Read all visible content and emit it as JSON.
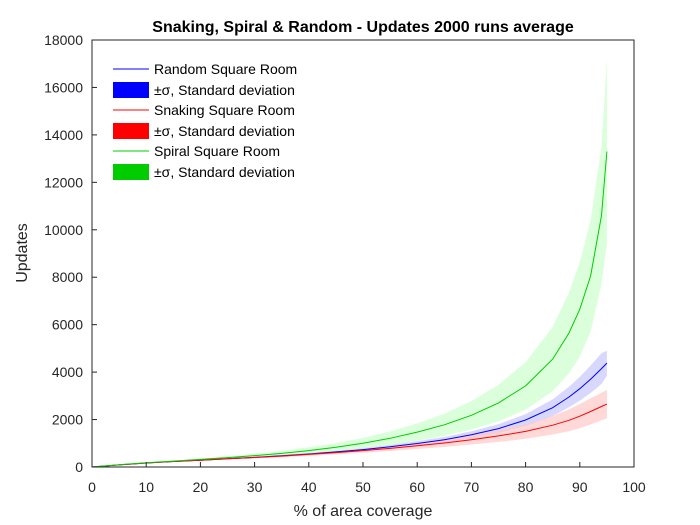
{
  "chart_data": {
    "type": "area",
    "title": "Snaking, Spiral & Random - Updates 2000 runs average",
    "xlabel": "% of area coverage",
    "ylabel": "Updates",
    "xlim": [
      0,
      100
    ],
    "ylim": [
      0,
      18000
    ],
    "xticks": [
      0,
      10,
      20,
      30,
      40,
      50,
      60,
      70,
      80,
      90,
      100
    ],
    "yticks": [
      0,
      2000,
      4000,
      6000,
      8000,
      10000,
      12000,
      14000,
      16000,
      18000
    ],
    "grid": false,
    "legend_position": "top-left",
    "x": [
      0,
      5,
      10,
      15,
      20,
      25,
      30,
      35,
      40,
      45,
      50,
      55,
      60,
      65,
      70,
      75,
      80,
      85,
      88,
      90,
      92,
      94,
      95
    ],
    "series": [
      {
        "name": "Random Square Room",
        "band_label": "±σ, Standard deviation",
        "color": "#0000ff",
        "band_color": "#c8c8ff",
        "mean": [
          0,
          90,
          170,
          230,
          285,
          345,
          405,
          475,
          550,
          635,
          735,
          850,
          990,
          1150,
          1360,
          1620,
          1980,
          2500,
          2950,
          3300,
          3700,
          4150,
          4380
        ],
        "upper": [
          0,
          95,
          180,
          245,
          305,
          370,
          435,
          510,
          595,
          690,
          800,
          935,
          1090,
          1270,
          1510,
          1810,
          2230,
          2850,
          3380,
          3800,
          4280,
          4800,
          4900
        ],
        "lower": [
          0,
          85,
          160,
          215,
          265,
          320,
          375,
          440,
          505,
          580,
          670,
          765,
          890,
          1030,
          1210,
          1430,
          1730,
          2150,
          2520,
          2800,
          3120,
          3500,
          3850
        ]
      },
      {
        "name": "Snaking Square Room",
        "band_label": "±σ, Standard deviation",
        "color": "#ff0000",
        "band_color": "#ffc8c8",
        "mean": [
          0,
          90,
          170,
          230,
          285,
          345,
          400,
          460,
          530,
          605,
          690,
          785,
          895,
          1010,
          1150,
          1310,
          1500,
          1760,
          1970,
          2140,
          2340,
          2550,
          2650
        ],
        "upper": [
          0,
          95,
          182,
          248,
          310,
          375,
          440,
          510,
          590,
          680,
          780,
          895,
          1030,
          1175,
          1350,
          1560,
          1810,
          2150,
          2430,
          2650,
          2890,
          3130,
          3250
        ],
        "lower": [
          0,
          85,
          158,
          212,
          260,
          315,
          360,
          410,
          470,
          530,
          600,
          675,
          760,
          845,
          950,
          1060,
          1190,
          1370,
          1510,
          1630,
          1790,
          1970,
          2050
        ]
      },
      {
        "name": "Spiral Square Room",
        "band_label": "±σ, Standard deviation",
        "color": "#00cc00",
        "band_color": "#ccffcc",
        "mean": [
          0,
          95,
          180,
          250,
          320,
          395,
          480,
          575,
          690,
          830,
          1000,
          1210,
          1470,
          1780,
          2180,
          2700,
          3420,
          4550,
          5650,
          6650,
          8050,
          10600,
          13300
        ],
        "upper": [
          0,
          100,
          195,
          275,
          360,
          455,
          560,
          680,
          830,
          1010,
          1230,
          1500,
          1840,
          2250,
          2780,
          3470,
          4420,
          5900,
          7350,
          8650,
          10400,
          13500,
          17200
        ],
        "lower": [
          0,
          90,
          165,
          225,
          280,
          335,
          400,
          470,
          550,
          650,
          770,
          920,
          1100,
          1310,
          1580,
          1930,
          2420,
          3200,
          3950,
          4650,
          5700,
          7700,
          9400
        ]
      }
    ]
  }
}
